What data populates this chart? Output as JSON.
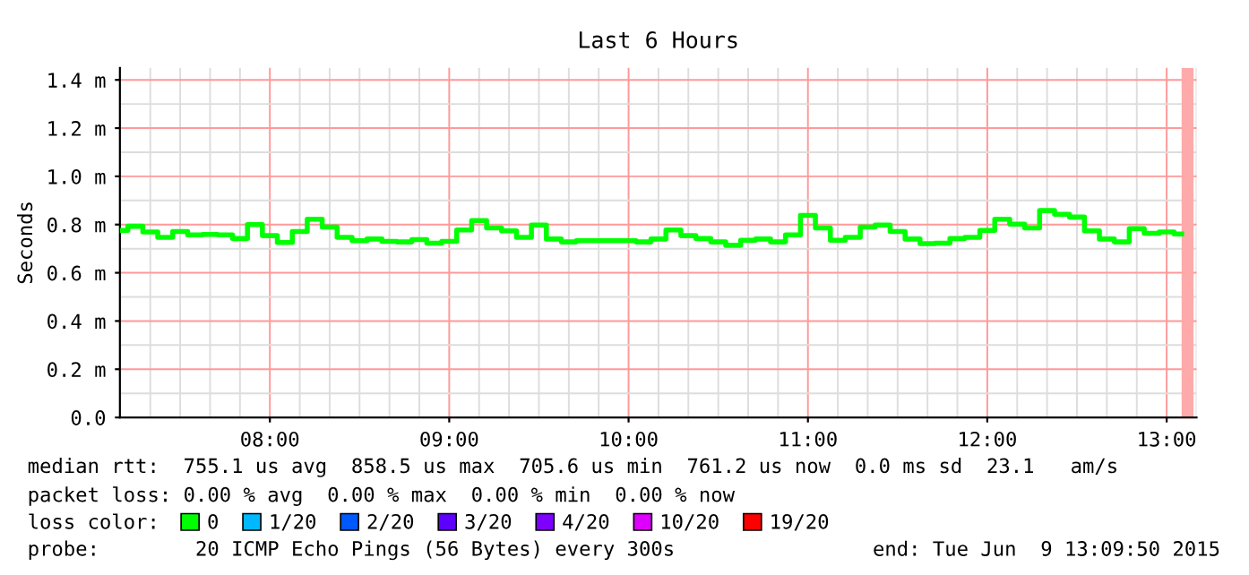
{
  "chart_data": {
    "type": "step",
    "title": "Last 6 Hours",
    "ylabel": "Seconds",
    "x": [
      "2015-06-09T07:10",
      "2015-06-09T07:15",
      "2015-06-09T07:20",
      "2015-06-09T07:25",
      "2015-06-09T07:30",
      "2015-06-09T07:35",
      "2015-06-09T07:40",
      "2015-06-09T07:45",
      "2015-06-09T07:50",
      "2015-06-09T07:55",
      "2015-06-09T08:00",
      "2015-06-09T08:05",
      "2015-06-09T08:10",
      "2015-06-09T08:15",
      "2015-06-09T08:20",
      "2015-06-09T08:25",
      "2015-06-09T08:30",
      "2015-06-09T08:35",
      "2015-06-09T08:40",
      "2015-06-09T08:45",
      "2015-06-09T08:50",
      "2015-06-09T08:55",
      "2015-06-09T09:00",
      "2015-06-09T09:05",
      "2015-06-09T09:10",
      "2015-06-09T09:15",
      "2015-06-09T09:20",
      "2015-06-09T09:25",
      "2015-06-09T09:30",
      "2015-06-09T09:35",
      "2015-06-09T09:40",
      "2015-06-09T09:45",
      "2015-06-09T09:50",
      "2015-06-09T09:55",
      "2015-06-09T10:00",
      "2015-06-09T10:05",
      "2015-06-09T10:10",
      "2015-06-09T10:15",
      "2015-06-09T10:20",
      "2015-06-09T10:25",
      "2015-06-09T10:30",
      "2015-06-09T10:35",
      "2015-06-09T10:40",
      "2015-06-09T10:45",
      "2015-06-09T10:50",
      "2015-06-09T10:55",
      "2015-06-09T11:00",
      "2015-06-09T11:05",
      "2015-06-09T11:10",
      "2015-06-09T11:15",
      "2015-06-09T11:20",
      "2015-06-09T11:25",
      "2015-06-09T11:30",
      "2015-06-09T11:35",
      "2015-06-09T11:40",
      "2015-06-09T11:45",
      "2015-06-09T11:50",
      "2015-06-09T11:55",
      "2015-06-09T12:00",
      "2015-06-09T12:05",
      "2015-06-09T12:10",
      "2015-06-09T12:15",
      "2015-06-09T12:20",
      "2015-06-09T12:25",
      "2015-06-09T12:30",
      "2015-06-09T12:35",
      "2015-06-09T12:40",
      "2015-06-09T12:45",
      "2015-06-09T12:50",
      "2015-06-09T12:55",
      "2015-06-09T13:00",
      "2015-06-09T13:05"
    ],
    "series": [
      {
        "name": "0",
        "color": "#00ff00",
        "values": [
          0.776,
          0.793,
          0.769,
          0.747,
          0.771,
          0.757,
          0.759,
          0.757,
          0.742,
          0.8,
          0.754,
          0.726,
          0.771,
          0.822,
          0.79,
          0.747,
          0.733,
          0.74,
          0.73,
          0.728,
          0.738,
          0.723,
          0.73,
          0.778,
          0.817,
          0.786,
          0.774,
          0.747,
          0.798,
          0.74,
          0.728,
          0.733,
          0.733,
          0.733,
          0.733,
          0.728,
          0.74,
          0.778,
          0.754,
          0.742,
          0.728,
          0.714,
          0.735,
          0.74,
          0.728,
          0.757,
          0.838,
          0.786,
          0.735,
          0.747,
          0.79,
          0.798,
          0.771,
          0.74,
          0.721,
          0.723,
          0.742,
          0.747,
          0.776,
          0.822,
          0.802,
          0.786,
          0.858,
          0.843,
          0.831,
          0.774,
          0.74,
          0.728,
          0.783,
          0.764,
          0.769,
          0.761
        ]
      },
      {
        "name": "1/20",
        "color": "#00b8ff",
        "values": [
          null,
          null,
          null,
          null,
          null,
          null,
          null,
          null,
          null,
          null,
          null,
          null,
          null,
          null,
          null,
          null,
          null,
          null,
          null,
          null,
          null,
          null,
          null,
          null,
          null,
          null,
          null,
          null,
          null,
          null,
          null,
          null,
          null,
          null,
          null,
          null,
          null,
          null,
          null,
          null,
          null,
          null,
          null,
          null,
          null,
          null,
          null,
          null,
          null,
          null,
          null,
          null,
          null,
          null,
          null,
          null,
          null,
          null,
          null,
          null,
          null,
          null,
          null,
          null,
          null,
          null,
          null,
          null,
          null,
          null,
          null,
          null
        ]
      },
      {
        "name": "2/20",
        "color": "#0059ff",
        "values": [
          null,
          null,
          null,
          null,
          null,
          null,
          null,
          null,
          null,
          null,
          null,
          null,
          null,
          null,
          null,
          null,
          null,
          null,
          null,
          null,
          null,
          null,
          null,
          null,
          null,
          null,
          null,
          null,
          null,
          null,
          null,
          null,
          null,
          null,
          null,
          null,
          null,
          null,
          null,
          null,
          null,
          null,
          null,
          null,
          null,
          null,
          null,
          null,
          null,
          null,
          null,
          null,
          null,
          null,
          null,
          null,
          null,
          null,
          null,
          null,
          null,
          null,
          null,
          null,
          null,
          null,
          null,
          null,
          null,
          null,
          null,
          null
        ]
      },
      {
        "name": "3/20",
        "color": "#5e00ff",
        "values": [
          null,
          null,
          null,
          null,
          null,
          null,
          null,
          null,
          null,
          null,
          null,
          null,
          null,
          null,
          null,
          null,
          null,
          null,
          null,
          null,
          null,
          null,
          null,
          null,
          null,
          null,
          null,
          null,
          null,
          null,
          null,
          null,
          null,
          null,
          null,
          null,
          null,
          null,
          null,
          null,
          null,
          null,
          null,
          null,
          null,
          null,
          null,
          null,
          null,
          null,
          null,
          null,
          null,
          null,
          null,
          null,
          null,
          null,
          null,
          null,
          null,
          null,
          null,
          null,
          null,
          null,
          null,
          null,
          null,
          null,
          null,
          null
        ]
      },
      {
        "name": "4/20",
        "color": "#7e00ff",
        "values": [
          null,
          null,
          null,
          null,
          null,
          null,
          null,
          null,
          null,
          null,
          null,
          null,
          null,
          null,
          null,
          null,
          null,
          null,
          null,
          null,
          null,
          null,
          null,
          null,
          null,
          null,
          null,
          null,
          null,
          null,
          null,
          null,
          null,
          null,
          null,
          null,
          null,
          null,
          null,
          null,
          null,
          null,
          null,
          null,
          null,
          null,
          null,
          null,
          null,
          null,
          null,
          null,
          null,
          null,
          null,
          null,
          null,
          null,
          null,
          null,
          null,
          null,
          null,
          null,
          null,
          null,
          null,
          null,
          null,
          null,
          null,
          null
        ]
      },
      {
        "name": "10/20",
        "color": "#dd00ff",
        "values": [
          null,
          null,
          null,
          null,
          null,
          null,
          null,
          null,
          null,
          null,
          null,
          null,
          null,
          null,
          null,
          null,
          null,
          null,
          null,
          null,
          null,
          null,
          null,
          null,
          null,
          null,
          null,
          null,
          null,
          null,
          null,
          null,
          null,
          null,
          null,
          null,
          null,
          null,
          null,
          null,
          null,
          null,
          null,
          null,
          null,
          null,
          null,
          null,
          null,
          null,
          null,
          null,
          null,
          null,
          null,
          null,
          null,
          null,
          null,
          null,
          null,
          null,
          null,
          null,
          null,
          null,
          null,
          null,
          null,
          null,
          null,
          null
        ]
      },
      {
        "name": "19/20",
        "color": "#ff0000",
        "values": [
          null,
          null,
          null,
          null,
          null,
          null,
          null,
          null,
          null,
          null,
          null,
          null,
          null,
          null,
          null,
          null,
          null,
          null,
          null,
          null,
          null,
          null,
          null,
          null,
          null,
          null,
          null,
          null,
          null,
          null,
          null,
          null,
          null,
          null,
          null,
          null,
          null,
          null,
          null,
          null,
          null,
          null,
          null,
          null,
          null,
          null,
          null,
          null,
          null,
          null,
          null,
          null,
          null,
          null,
          null,
          null,
          null,
          null,
          null,
          null,
          null,
          null,
          null,
          null,
          null,
          null,
          null,
          null,
          null,
          null,
          null,
          null
        ]
      }
    ],
    "legend": "bottom",
    "legend_title": "loss color:",
    "xlim": [
      "2015-06-09T07:09:50",
      "2015-06-09T13:10"
    ],
    "xticks": [
      {
        "value": "2015-06-09T08:00",
        "label": "08:00"
      },
      {
        "value": "2015-06-09T09:00",
        "label": "09:00"
      },
      {
        "value": "2015-06-09T10:00",
        "label": "10:00"
      },
      {
        "value": "2015-06-09T11:00",
        "label": "11:00"
      },
      {
        "value": "2015-06-09T12:00",
        "label": "12:00"
      },
      {
        "value": "2015-06-09T13:00",
        "label": "13:00"
      }
    ],
    "ylim": [
      0,
      1.45
    ],
    "yticks": [
      {
        "value": 0,
        "label": "0.0"
      },
      {
        "value": 0.2,
        "label": "0.2 m"
      },
      {
        "value": 0.4,
        "label": "0.4 m"
      },
      {
        "value": 0.6,
        "label": "0.6 m"
      },
      {
        "value": 0.8,
        "label": "0.8 m"
      },
      {
        "value": 1.0,
        "label": "1.0 m"
      },
      {
        "value": 1.2,
        "label": "1.2 m"
      },
      {
        "value": 1.4,
        "label": "1.4 m"
      }
    ],
    "grid": true,
    "bands": [
      {
        "axis": "x",
        "from": "2015-06-09T13:05",
        "to": "2015-06-09T13:09",
        "color": "#ffaaaa"
      }
    ],
    "annotations": [
      "median rtt:  755.1 us avg  858.5 us max  705.6 us min  761.2 us now  0.0 ms sd  23.1   am/s",
      "packet loss: 0.00 % avg  0.00 % max  0.00 % min  0.00 % now",
      "probe:        20 ICMP Echo Pings (56 Bytes) every 300s",
      "end: Tue Jun  9 13:09:50 2015"
    ]
  }
}
